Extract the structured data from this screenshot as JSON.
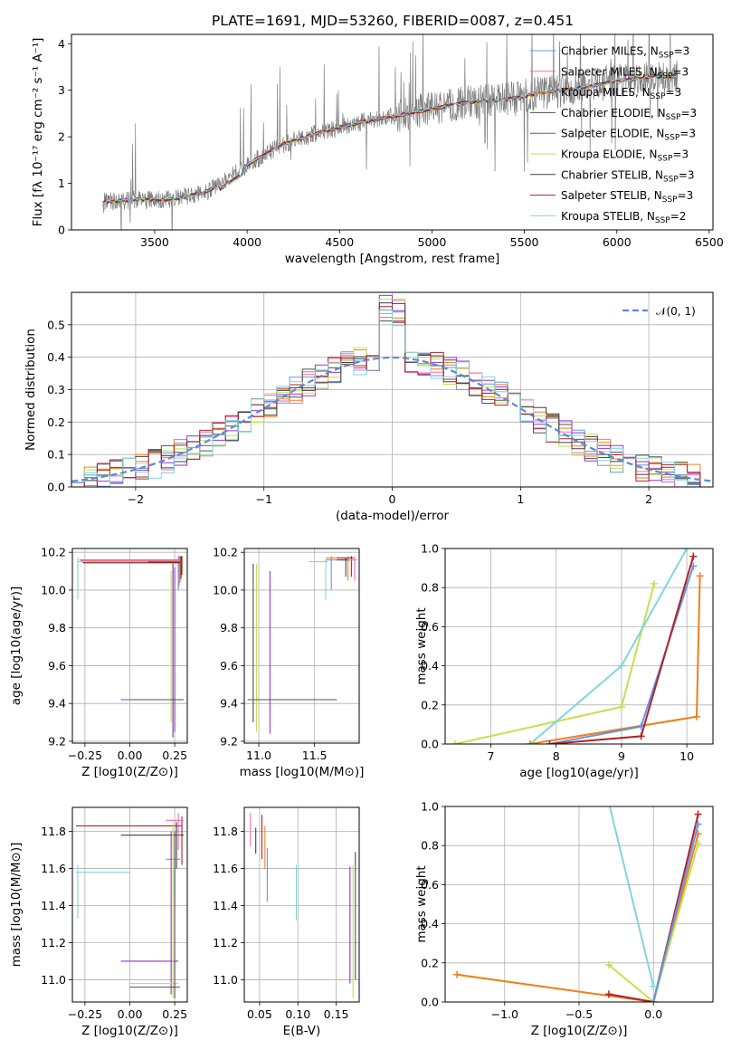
{
  "title": "PLATE=1691, MJD=53260, FIBERID=0087, z=0.451",
  "colors": {
    "Chabrier MILES": "#6495ed",
    "Salpeter MILES": "#ff69b4",
    "Kroupa MILES": "#ef7f1a",
    "Chabrier ELODIE": "#505050",
    "Salpeter ELODIE": "#9932cc",
    "Kroupa ELODIE": "#c6df4f",
    "Chabrier STELIB": "#404040",
    "Salpeter STELIB": "#b22222",
    "Kroupa STELIB": "#7fd6de"
  },
  "chart_data": [
    {
      "id": "spectrum",
      "type": "line",
      "xlabel": "wavelength [Angstrom, rest frame]",
      "ylabel": "Flux [fλ 10⁻¹⁷ erg cm⁻² s⁻¹ A⁻¹]",
      "xlim": [
        3050,
        6520
      ],
      "ylim": [
        0,
        4.2
      ],
      "xticks": [
        "3500",
        "4000",
        "4500",
        "5000",
        "5500",
        "6000",
        "6500"
      ],
      "yticks": [
        "0",
        "1",
        "2",
        "3",
        "4"
      ],
      "legend": [
        "Chabrier MILES, N_SSP=3",
        "Salpeter MILES, N_SSP=3",
        "Kroupa MILES, N_SSP=3",
        "Chabrier ELODIE, N_SSP=3",
        "Salpeter ELODIE, N_SSP=3",
        "Kroupa ELODIE, N_SSP=3",
        "Chabrier STELIB, N_SSP=3",
        "Salpeter STELIB, N_SSP=3",
        "Kroupa STELIB, N_SSP=2"
      ],
      "legend_placement": "upper right",
      "continuum": {
        "x": [
          3220,
          3400,
          3600,
          3800,
          4000,
          4200,
          4400,
          4600,
          4800,
          5000,
          5200,
          5400,
          5600,
          5800,
          6000,
          6200,
          6330
        ],
        "y": [
          0.6,
          0.65,
          0.65,
          0.85,
          1.4,
          1.85,
          2.1,
          2.3,
          2.45,
          2.6,
          2.75,
          2.8,
          2.95,
          3.05,
          3.2,
          3.3,
          3.3
        ]
      }
    },
    {
      "id": "residuals",
      "type": "histogram",
      "xlabel": "(data-model)/error",
      "ylabel": "Normed distribution",
      "xlim": [
        -2.5,
        2.5
      ],
      "ylim": [
        0,
        0.6
      ],
      "xticks": [
        "−2",
        "−1",
        "0",
        "1",
        "2"
      ],
      "yticks": [
        "0.0",
        "0.1",
        "0.2",
        "0.3",
        "0.4",
        "0.5"
      ],
      "reference_curve": "𝒩(0, 1)",
      "legend_placement": "upper right"
    },
    {
      "id": "age-vs-Z",
      "type": "scatter",
      "xlabel": "Z [log10(Z/Z⊙)]",
      "ylabel": "age [log10(age/yr)]",
      "xlim": [
        -0.32,
        0.32
      ],
      "ylim": [
        9.19,
        10.22
      ],
      "xticks": [
        "−0.25",
        "0.00",
        "0.25"
      ],
      "yticks": [
        "9.2",
        "9.4",
        "9.6",
        "9.8",
        "10.0",
        "10.2"
      ]
    },
    {
      "id": "age-vs-mass",
      "type": "scatter",
      "xlabel": "mass [log10(M/M⊙)]",
      "xlim": [
        10.87,
        11.9
      ],
      "ylim": [
        9.19,
        10.22
      ],
      "xticks": [
        "11.0",
        "11.5"
      ],
      "yticks": [
        "9.2",
        "9.4",
        "9.6",
        "9.8",
        "10.0",
        "10.2"
      ]
    },
    {
      "id": "massweight-vs-age",
      "type": "line",
      "xlabel": "age [log10(age/yr)]",
      "ylabel": "mass weight",
      "xlim": [
        6.3,
        10.4
      ],
      "ylim": [
        0,
        1
      ],
      "xticks": [
        "7",
        "8",
        "9",
        "10"
      ],
      "yticks": [
        "0.0",
        "0.2",
        "0.4",
        "0.6",
        "0.8",
        "1.0"
      ],
      "series": [
        {
          "name": "Kroupa ELODIE",
          "x": [
            6.45,
            9.0,
            9.5
          ],
          "y": [
            0.0,
            0.19,
            0.82
          ]
        },
        {
          "name": "Kroupa STELIB",
          "x": [
            7.6,
            9.0,
            10.0
          ],
          "y": [
            0.0,
            0.4,
            1.0
          ]
        },
        {
          "name": "Kroupa MILES",
          "x": [
            7.6,
            10.15,
            10.2
          ],
          "y": [
            0.0,
            0.14,
            0.86
          ]
        },
        {
          "name": "Chabrier MILES",
          "x": [
            7.9,
            9.3,
            10.1
          ],
          "y": [
            0.0,
            0.09,
            0.91
          ]
        },
        {
          "name": "Salpeter STELIB",
          "x": [
            7.9,
            9.3,
            10.1
          ],
          "y": [
            0.0,
            0.04,
            0.96
          ]
        }
      ]
    },
    {
      "id": "mass-vs-Z",
      "type": "scatter",
      "xlabel": "Z [log10(Z/Z⊙)]",
      "ylabel": "mass [log10(M/M⊙)]",
      "xlim": [
        -0.32,
        0.32
      ],
      "ylim": [
        10.88,
        11.93
      ],
      "xticks": [
        "−0.25",
        "0.00",
        "0.25"
      ],
      "yticks": [
        "11.0",
        "11.2",
        "11.4",
        "11.6",
        "11.8"
      ]
    },
    {
      "id": "mass-vs-ebv",
      "type": "scatter",
      "xlabel": "E(B-V)",
      "xlim": [
        0.03,
        0.18
      ],
      "ylim": [
        10.88,
        11.93
      ],
      "xticks": [
        "0.05",
        "0.10",
        "0.15"
      ],
      "yticks": [
        "11.0",
        "11.2",
        "11.4",
        "11.6",
        "11.8"
      ]
    },
    {
      "id": "massweight-vs-Z",
      "type": "line",
      "xlabel": "Z [log10(Z/Z⊙)]",
      "ylabel": "mass weight",
      "xlim": [
        -1.4,
        0.4
      ],
      "ylim": [
        0,
        1
      ],
      "xticks": [
        "−1.0",
        "−0.5",
        "0.0"
      ],
      "yticks": [
        "0.0",
        "0.2",
        "0.4",
        "0.6",
        "0.8",
        "1.0"
      ],
      "series": [
        {
          "name": "Kroupa MILES",
          "x": [
            -1.32,
            0.0,
            0.3
          ],
          "y": [
            0.14,
            0.0,
            0.86
          ]
        },
        {
          "name": "Kroupa ELODIE",
          "x": [
            -0.3,
            0.0,
            0.3
          ],
          "y": [
            0.19,
            0.0,
            0.81
          ]
        },
        {
          "name": "Salpeter STELIB",
          "x": [
            -0.3,
            0.0,
            0.3
          ],
          "y": [
            0.04,
            0.0,
            0.96
          ]
        },
        {
          "name": "Chabrier MILES",
          "x": [
            0.0,
            0.3
          ],
          "y": [
            0.0,
            0.91
          ]
        },
        {
          "name": "Kroupa STELIB",
          "x": [
            -0.3,
            0.0
          ],
          "y": [
            1.02,
            0.08
          ]
        }
      ]
    }
  ]
}
